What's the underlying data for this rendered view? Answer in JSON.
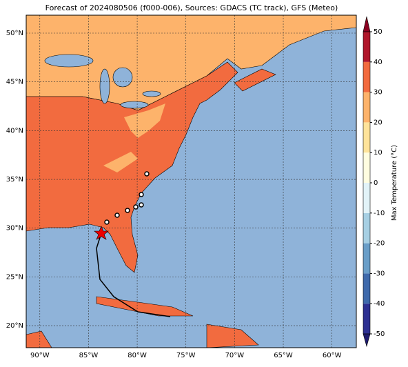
{
  "title": "Forecast of 2024080506 (f000-006), Sources: GDACS (TC track), GFS (Meteo)",
  "map": {
    "lon_range": [
      -91.4,
      -57.5
    ],
    "lat_range": [
      17.74,
      51.84
    ],
    "lon_ticks": [
      {
        "value": -90,
        "label": "90°W"
      },
      {
        "value": -85,
        "label": "85°W"
      },
      {
        "value": -80,
        "label": "80°W"
      },
      {
        "value": -75,
        "label": "75°W"
      },
      {
        "value": -70,
        "label": "70°W"
      },
      {
        "value": -65,
        "label": "65°W"
      },
      {
        "value": -60,
        "label": "60°W"
      }
    ],
    "lat_ticks": [
      {
        "value": 20,
        "label": "20°N"
      },
      {
        "value": 25,
        "label": "25°N"
      },
      {
        "value": 30,
        "label": "30°N"
      },
      {
        "value": 35,
        "label": "35°N"
      },
      {
        "value": 40,
        "label": "40°N"
      },
      {
        "value": 45,
        "label": "45°N"
      },
      {
        "value": 50,
        "label": "50°N"
      }
    ]
  },
  "colorbar": {
    "label": "Max Temperature (°C)",
    "limits": [
      -50,
      50
    ],
    "ticks": [
      -50,
      -40,
      -30,
      -20,
      -10,
      0,
      10,
      20,
      30,
      40,
      50
    ],
    "colors": [
      "#2d3092",
      "#3f6aab",
      "#6a9ec8",
      "#a6cfe3",
      "#e2f3f8",
      "#fffde0",
      "#fee39a",
      "#fdb36b",
      "#f26b3f",
      "#b0162b"
    ],
    "under_color": "#1d1a6e",
    "over_color": "#8a0020"
  }
}
